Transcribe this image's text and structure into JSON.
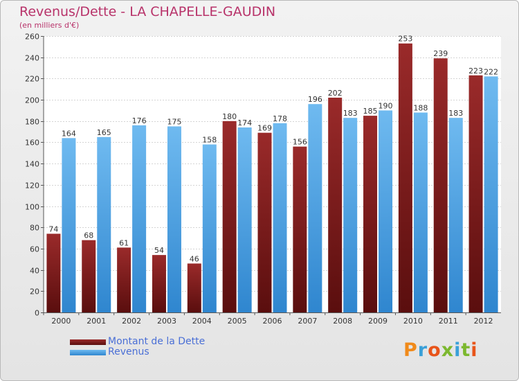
{
  "chart_data": {
    "type": "bar",
    "title": "Revenus/Dette - LA CHAPELLE-GAUDIN",
    "subtitle": "(en milliers d'€)",
    "categories": [
      "2000",
      "2001",
      "2002",
      "2003",
      "2004",
      "2005",
      "2006",
      "2007",
      "2008",
      "2009",
      "2010",
      "2011",
      "2012"
    ],
    "series": [
      {
        "name": "Montant de la Dette",
        "color": "#7a1a1a",
        "values": [
          74,
          68,
          61,
          54,
          46,
          180,
          169,
          156,
          202,
          185,
          253,
          239,
          223
        ]
      },
      {
        "name": "Revenus",
        "color": "#4ea6e8",
        "values": [
          164,
          165,
          176,
          175,
          158,
          174,
          178,
          196,
          183,
          190,
          188,
          183,
          222
        ]
      }
    ],
    "ylim": [
      0,
      260
    ],
    "ytick_step": 20,
    "grid": true,
    "legend_position": "bottom-left"
  },
  "logo": {
    "text": "Proxiti",
    "colors": [
      "#f08a1a",
      "#3aa0d8",
      "#e8541a",
      "#7cb82f",
      "#3aa0d8",
      "#7cb82f",
      "#e8541a"
    ]
  }
}
